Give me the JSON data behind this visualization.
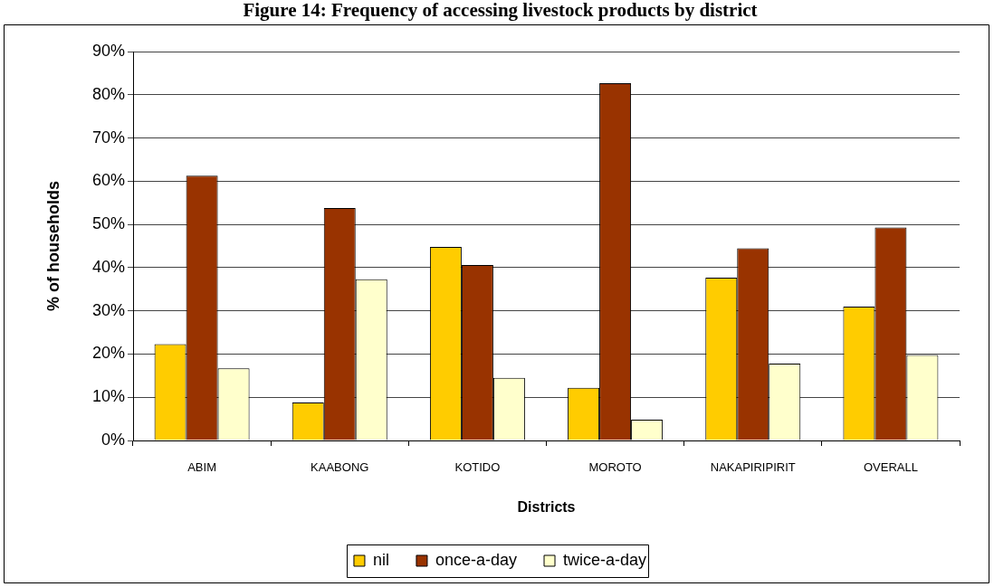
{
  "chart_data": {
    "type": "bar",
    "title": "Figure 14: Frequency of accessing livestock products by district",
    "xlabel": "Districts",
    "ylabel": "% of households",
    "categories": [
      "ABIM",
      "KAABONG",
      "KOTIDO",
      "MOROTO",
      "NAKAPIRIPIRIT",
      "OVERALL"
    ],
    "series": [
      {
        "name": "nil",
        "color": "#ffcc00",
        "values": [
          22.3,
          8.8,
          44.8,
          12.2,
          37.7,
          31.0
        ]
      },
      {
        "name": "once-a-day",
        "color": "#993300",
        "values": [
          61.3,
          53.8,
          40.6,
          82.7,
          44.5,
          49.3
        ]
      },
      {
        "name": "twice-a-day",
        "color": "#ffffcc",
        "values": [
          16.7,
          37.3,
          14.5,
          4.8,
          17.8,
          19.8
        ]
      }
    ],
    "ylim": [
      0,
      90
    ],
    "yticks": [
      {
        "value": 0,
        "label": "0%"
      },
      {
        "value": 10,
        "label": "10%"
      },
      {
        "value": 20,
        "label": "20%"
      },
      {
        "value": 30,
        "label": "30%"
      },
      {
        "value": 40,
        "label": "40%"
      },
      {
        "value": 50,
        "label": "50%"
      },
      {
        "value": 60,
        "label": "60%"
      },
      {
        "value": 70,
        "label": "70%"
      },
      {
        "value": 80,
        "label": "80%"
      },
      {
        "value": 90,
        "label": "90%"
      }
    ],
    "grid": "y",
    "legend": "bottom"
  }
}
